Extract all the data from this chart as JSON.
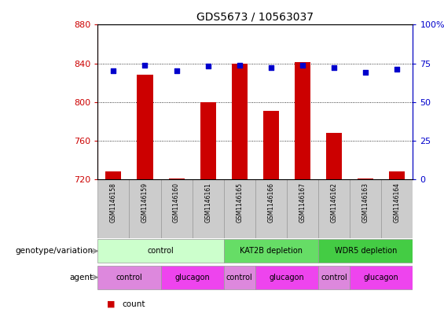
{
  "title": "GDS5673 / 10563037",
  "samples": [
    "GSM1146158",
    "GSM1146159",
    "GSM1146160",
    "GSM1146161",
    "GSM1146165",
    "GSM1146166",
    "GSM1146167",
    "GSM1146162",
    "GSM1146163",
    "GSM1146164"
  ],
  "counts": [
    728,
    828,
    721,
    800,
    840,
    791,
    841,
    768,
    721,
    728
  ],
  "percentiles": [
    70,
    74,
    70,
    73,
    74,
    72,
    74,
    72,
    69,
    71
  ],
  "ylim_left": [
    720,
    880
  ],
  "ylim_right": [
    0,
    100
  ],
  "yticks_left": [
    720,
    760,
    800,
    840,
    880
  ],
  "yticks_right": [
    0,
    25,
    50,
    75,
    100
  ],
  "bar_color": "#cc0000",
  "dot_color": "#0000cc",
  "bar_width": 0.5,
  "genotype_groups": [
    {
      "label": "control",
      "span": [
        0,
        4
      ],
      "color": "#ccffcc"
    },
    {
      "label": "KAT2B depletion",
      "span": [
        4,
        7
      ],
      "color": "#66dd66"
    },
    {
      "label": "WDR5 depletion",
      "span": [
        7,
        10
      ],
      "color": "#44cc44"
    }
  ],
  "agent_groups": [
    {
      "label": "control",
      "span": [
        0,
        2
      ],
      "color": "#dd88dd"
    },
    {
      "label": "glucagon",
      "span": [
        2,
        4
      ],
      "color": "#ee44ee"
    },
    {
      "label": "control",
      "span": [
        4,
        5
      ],
      "color": "#dd88dd"
    },
    {
      "label": "glucagon",
      "span": [
        5,
        7
      ],
      "color": "#ee44ee"
    },
    {
      "label": "control",
      "span": [
        7,
        8
      ],
      "color": "#dd88dd"
    },
    {
      "label": "glucagon",
      "span": [
        8,
        10
      ],
      "color": "#ee44ee"
    }
  ],
  "legend_count_color": "#cc0000",
  "legend_percentile_color": "#0000cc",
  "xlabel_genotype": "genotype/variation",
  "xlabel_agent": "agent",
  "left_axis_color": "#cc0000",
  "right_axis_color": "#0000cc",
  "genotype_colors_light": "#ccffcc",
  "genotype_colors_dark": "#55cc55",
  "agent_color_control": "#dd88ee",
  "agent_color_glucagon": "#ee44ee"
}
